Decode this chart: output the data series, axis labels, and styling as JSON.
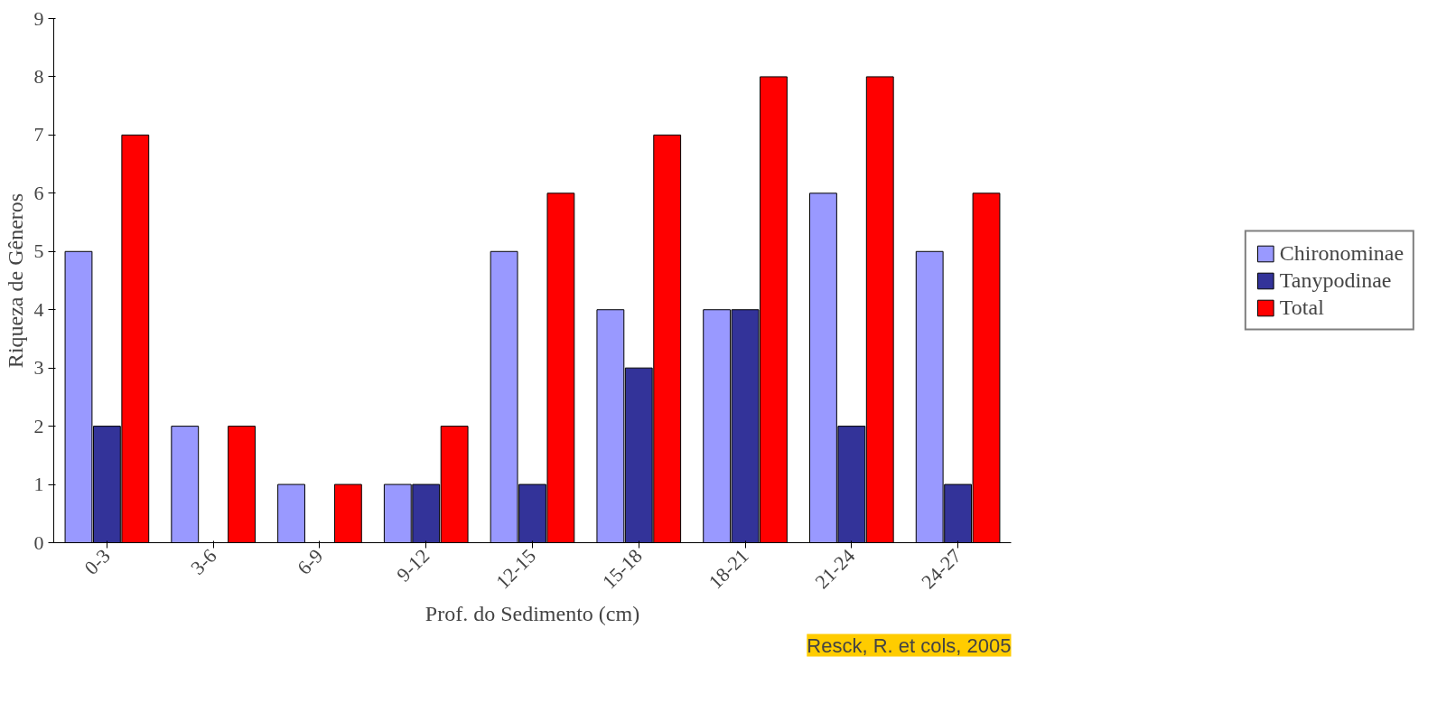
{
  "chart_data": {
    "type": "bar",
    "xlabel": "Prof. do Sedimento (cm)",
    "ylabel": "Riqueza de Gêneros",
    "categories": [
      "0-3",
      "3-6",
      "6-9",
      "9-12",
      "12-15",
      "15-18",
      "18-21",
      "21-24",
      "24-27"
    ],
    "series": [
      {
        "name": "Chironominae",
        "color": "#9999ff",
        "values": [
          5,
          2,
          1,
          1,
          5,
          4,
          4,
          6,
          5
        ]
      },
      {
        "name": "Tanypodinae",
        "color": "#333399",
        "values": [
          2,
          null,
          null,
          1,
          1,
          3,
          4,
          2,
          1
        ]
      },
      {
        "name": "Total",
        "color": "#ff0000",
        "values": [
          7,
          2,
          1,
          2,
          6,
          7,
          8,
          8,
          6
        ]
      }
    ],
    "ylim": [
      0,
      9
    ],
    "yticks": [
      0,
      1,
      2,
      3,
      4,
      5,
      6,
      7,
      8,
      9
    ],
    "grid": false,
    "legend": "right",
    "annotations": [
      "Resck, R. et cols, 2005"
    ]
  }
}
